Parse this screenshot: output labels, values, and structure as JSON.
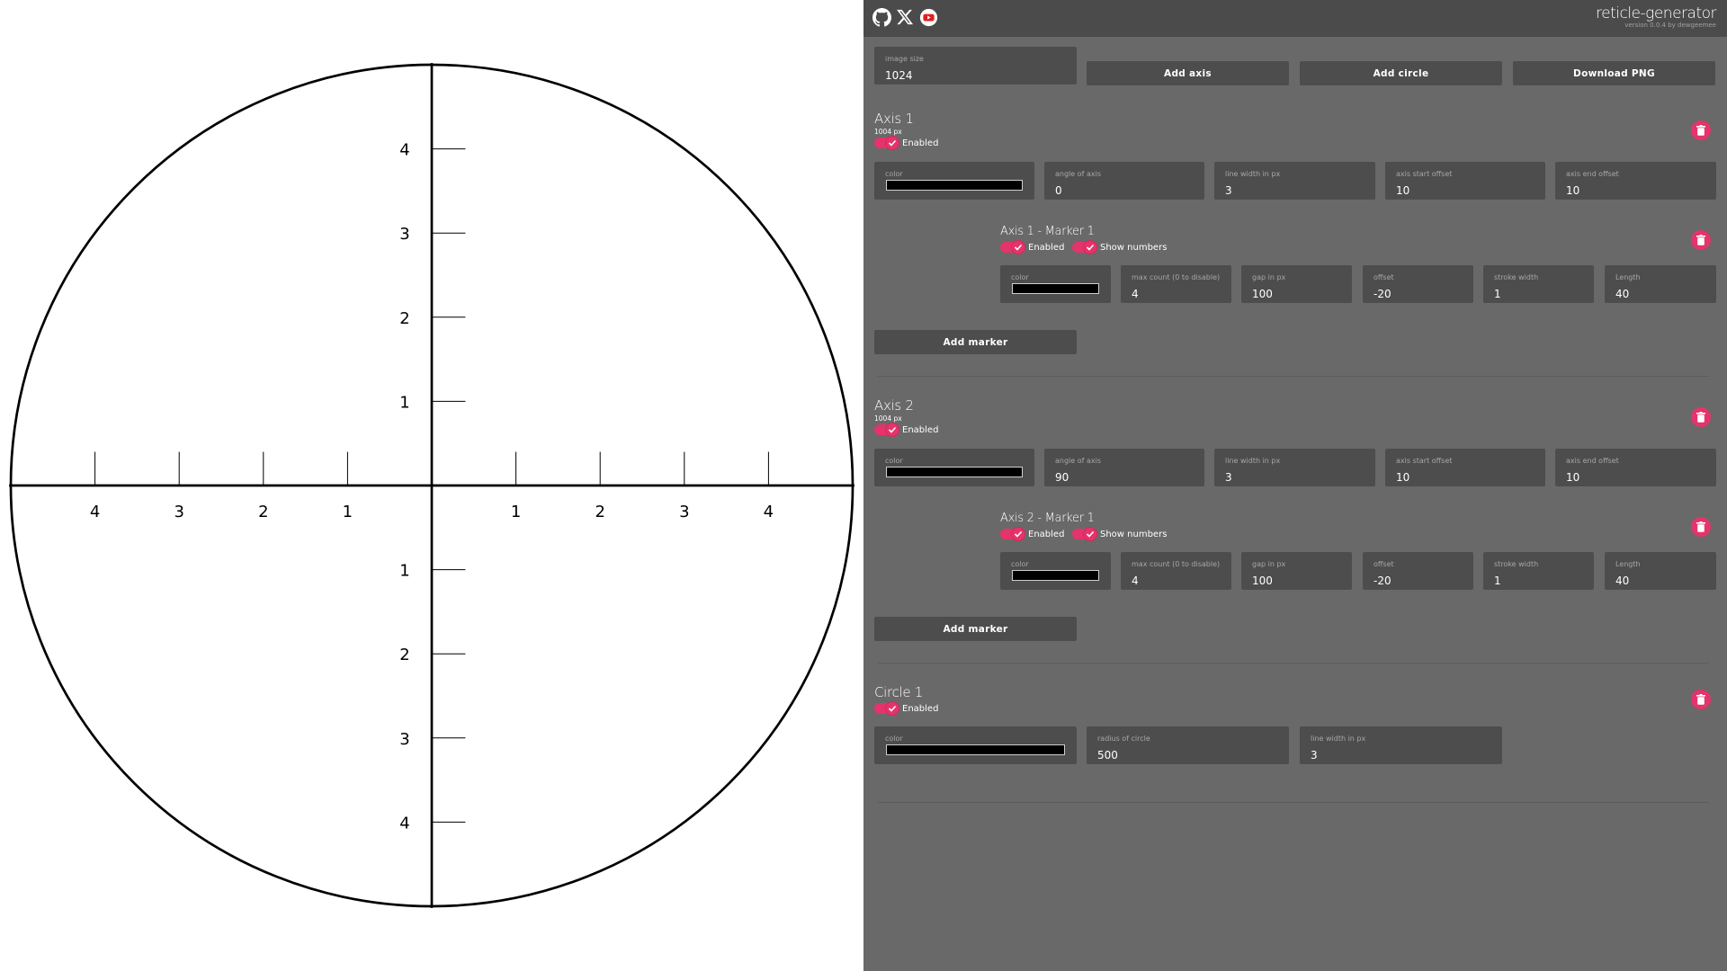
{
  "brand": {
    "name": "reticle-generator",
    "version": "version 0.0.4 by dewgeemee"
  },
  "social": [
    {
      "icon": "github-icon"
    },
    {
      "icon": "x-icon"
    },
    {
      "icon": "youtube-icon"
    }
  ],
  "colors": {
    "accent": "#e5336b",
    "panel": "#696969",
    "topbar": "#4b4b4b",
    "field": "#4d4d4d",
    "reticle": "#000000"
  },
  "toolbar": {
    "image_size_label": "image size",
    "image_size_value": "1024",
    "add_axis": "Add axis",
    "add_circle": "Add circle",
    "download_png": "Download PNG"
  },
  "axes": [
    {
      "title": "Axis 1",
      "length": "1004 px",
      "enabled_label": "Enabled",
      "fields": {
        "color_label": "color",
        "angle_label": "angle of axis",
        "angle": "0",
        "line_width_label": "line width in px",
        "line_width": "3",
        "start_offset_label": "axis start offset",
        "start_offset": "10",
        "end_offset_label": "axis end offset",
        "end_offset": "10"
      },
      "marker": {
        "title": "Axis 1 - Marker 1",
        "enabled_label": "Enabled",
        "show_numbers_label": "Show numbers",
        "color_label": "color",
        "max_count_label": "max count (0 to disable)",
        "max_count": "4",
        "gap_label": "gap in px",
        "gap": "100",
        "offset_label": "offset",
        "offset": "-20",
        "stroke_label": "stroke width",
        "stroke": "1",
        "length_label": "Length",
        "length": "40"
      },
      "add_marker": "Add marker"
    },
    {
      "title": "Axis 2",
      "length": "1004 px",
      "enabled_label": "Enabled",
      "fields": {
        "color_label": "color",
        "angle_label": "angle of axis",
        "angle": "90",
        "line_width_label": "line width in px",
        "line_width": "3",
        "start_offset_label": "axis start offset",
        "start_offset": "10",
        "end_offset_label": "axis end offset",
        "end_offset": "10"
      },
      "marker": {
        "title": "Axis 2 - Marker 1",
        "enabled_label": "Enabled",
        "show_numbers_label": "Show numbers",
        "color_label": "color",
        "max_count_label": "max count (0 to disable)",
        "max_count": "4",
        "gap_label": "gap in px",
        "gap": "100",
        "offset_label": "offset",
        "offset": "-20",
        "stroke_label": "stroke width",
        "stroke": "1",
        "length_label": "Length",
        "length": "40"
      },
      "add_marker": "Add marker"
    }
  ],
  "circle": {
    "title": "Circle 1",
    "enabled_label": "Enabled",
    "color_label": "color",
    "radius_label": "radius of circle",
    "radius": "500",
    "line_width_label": "line width in px",
    "line_width": "3"
  },
  "reticle": {
    "h_labels": [
      "4",
      "3",
      "2",
      "1",
      "1",
      "2",
      "3",
      "4"
    ],
    "v_labels_top": [
      "4",
      "3",
      "2",
      "1"
    ],
    "v_labels_bottom": [
      "1",
      "2",
      "3",
      "4"
    ]
  }
}
